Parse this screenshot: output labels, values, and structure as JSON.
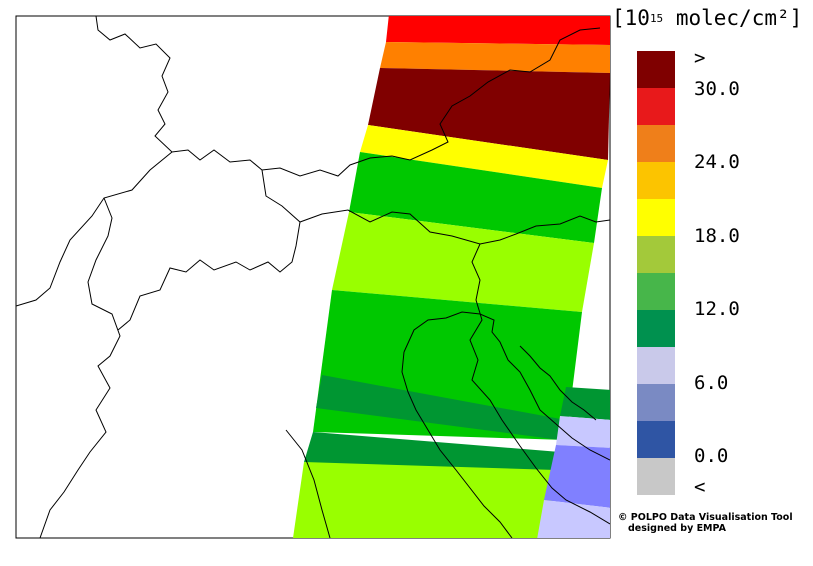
{
  "legend": {
    "unit_prefix": "[10",
    "unit_exp": "15",
    "unit_rest": " molec/cm²]",
    "classes": [
      {
        "color": "#7f0000"
      },
      {
        "color": "#e8191b"
      },
      {
        "color": "#ef7f1a"
      },
      {
        "color": "#fcc400"
      },
      {
        "color": "#ffff00"
      },
      {
        "color": "#a3c93a"
      },
      {
        "color": "#47b64a"
      },
      {
        "color": "#00914f"
      },
      {
        "color": "#c9c9ea"
      },
      {
        "color": "#7a8ac3"
      },
      {
        "color": "#2f55a4"
      },
      {
        "color": "#c8c8c8"
      }
    ],
    "tick_labels": [
      ">",
      "30.0",
      "24.0",
      "18.0",
      "12.0",
      "6.0",
      "0.0",
      "<"
    ]
  },
  "credit": {
    "line1": "© POLPO Data Visualisation Tool",
    "line2": "designed by EMPA"
  }
}
